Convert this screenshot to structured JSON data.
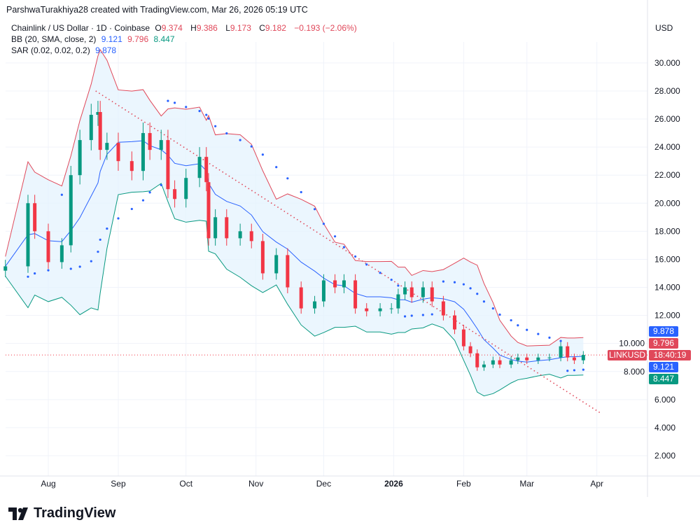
{
  "credit": "ParshwaTurakhiya28 created with TradingView.com, Mar 26, 2026 05:19 UTC",
  "legend": {
    "symbol": "Chainlink / US Dollar · 1D · Coinbase",
    "o_label": "O",
    "o": "9.374",
    "h_label": "H",
    "h": "9.386",
    "l_label": "L",
    "l": "9.173",
    "c_label": "C",
    "c": "9.182",
    "change": "−0.193 (−2.06%)",
    "bb_label": "BB (20, SMA, close, 2)",
    "bb_basis": "9.121",
    "bb_upper": "9.796",
    "bb_lower": "8.447",
    "sar_label": "SAR (0.02, 0.02, 0.2)",
    "sar": "9.878"
  },
  "currency": "USD",
  "price_labels": {
    "sar": "9.878",
    "bb_upper": "9.796",
    "symbol": "LINKUSD",
    "countdown": "18:40:19",
    "bb_basis": "9.121",
    "bb_lower": "8.447"
  },
  "colors": {
    "up": "#089981",
    "down": "#f23645",
    "bb_upper": "#e0485a",
    "bb_basis": "#2962ff",
    "bb_lower": "#089981",
    "sar": "#2962ff",
    "trendline": "#e0485a",
    "band_fill": "#e3f2fd"
  },
  "footer": {
    "brand": "TradingView"
  },
  "chart_data": {
    "type": "candlestick",
    "title": "Chainlink / US Dollar · 1D · Coinbase",
    "ylim": [
      1,
      31
    ],
    "y_ticks": [
      "30.000",
      "28.000",
      "26.000",
      "24.000",
      "22.000",
      "20.000",
      "18.000",
      "16.000",
      "14.000",
      "12.000",
      "10.000",
      "8.000",
      "6.000",
      "4.000",
      "2.000"
    ],
    "x_ticks": [
      {
        "label": "Aug",
        "date": "2025-08-01"
      },
      {
        "label": "Sep",
        "date": "2025-09-01"
      },
      {
        "label": "Oct",
        "date": "2025-10-01"
      },
      {
        "label": "Nov",
        "date": "2025-11-01"
      },
      {
        "label": "Dec",
        "date": "2025-12-01"
      },
      {
        "label": "2026",
        "date": "2026-01-01",
        "bold": true
      },
      {
        "label": "Feb",
        "date": "2026-02-01"
      },
      {
        "label": "Mar",
        "date": "2026-03-01"
      },
      {
        "label": "Apr",
        "date": "2026-04-01"
      }
    ],
    "grid": true,
    "series": {
      "dates": [
        "2025-07-13",
        "2025-07-23",
        "2025-07-26",
        "2025-08-01",
        "2025-08-07",
        "2025-08-11",
        "2025-08-15",
        "2025-08-20",
        "2025-08-23",
        "2025-08-24",
        "2025-08-27",
        "2025-09-01",
        "2025-09-07",
        "2025-09-12",
        "2025-09-15",
        "2025-09-20",
        "2025-09-23",
        "2025-09-26",
        "2025-10-01",
        "2025-10-07",
        "2025-10-10",
        "2025-10-11",
        "2025-10-14",
        "2025-10-19",
        "2025-10-25",
        "2025-10-30",
        "2025-11-04",
        "2025-11-10",
        "2025-11-15",
        "2025-11-21",
        "2025-11-27",
        "2025-12-01",
        "2025-12-06",
        "2025-12-10",
        "2025-12-15",
        "2025-12-20",
        "2025-12-26",
        "2025-12-31",
        "2026-01-03",
        "2026-01-06",
        "2026-01-09",
        "2026-01-14",
        "2026-01-18",
        "2026-01-23",
        "2026-01-28",
        "2026-02-01",
        "2026-02-04",
        "2026-02-07",
        "2026-02-10",
        "2026-02-14",
        "2026-02-17",
        "2026-02-22",
        "2026-02-25",
        "2026-03-01",
        "2026-03-06",
        "2026-03-11",
        "2026-03-16",
        "2026-03-19",
        "2026-03-22",
        "2026-03-26"
      ],
      "close": [
        15.5,
        20.0,
        18.0,
        15.8,
        17.0,
        22.0,
        24.5,
        26.3,
        26.5,
        23.8,
        24.3,
        23.0,
        22.3,
        25.0,
        23.8,
        24.5,
        21.0,
        20.3,
        21.8,
        23.3,
        21.5,
        17.5,
        19.0,
        17.5,
        18.0,
        17.3,
        15.0,
        16.3,
        14.0,
        12.5,
        13.0,
        14.5,
        14.0,
        14.5,
        12.5,
        12.3,
        12.5,
        12.5,
        13.5,
        14.0,
        13.3,
        14.0,
        13.0,
        12.0,
        11.0,
        9.8,
        9.3,
        8.3,
        8.5,
        8.8,
        8.5,
        8.8,
        9.0,
        8.8,
        9.0,
        9.0,
        9.8,
        9.0,
        8.8,
        9.182
      ]
    },
    "indicators": {
      "bb": {
        "period": 20,
        "mult": 2
      },
      "sar": {
        "start": 0.02,
        "inc": 0.02,
        "max": 0.2
      }
    },
    "trendline": [
      {
        "date": "2025-08-22",
        "price": 28.0
      },
      {
        "date": "2026-04-03",
        "price": 5.0
      }
    ],
    "last_price": 9.182
  }
}
